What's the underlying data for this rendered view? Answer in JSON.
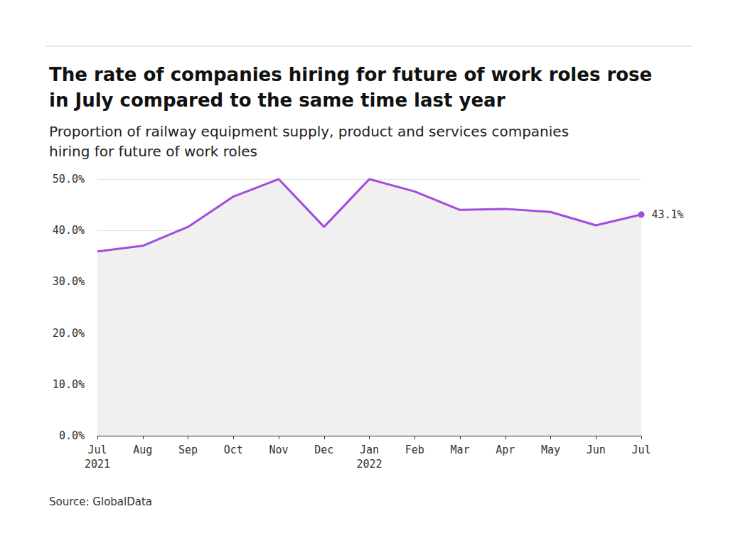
{
  "chart_data": {
    "type": "line",
    "title": "The rate of companies hiring for future of work roles rose\nin July compared to the same time last year",
    "subtitle": "Proportion of railway equipment supply, product and services companies\nhiring for future of work roles",
    "source": "Source: GlobalData",
    "categories": [
      "Jul\n2021",
      "Aug",
      "Sep",
      "Oct",
      "Nov",
      "Dec",
      "Jan\n2022",
      "Feb",
      "Mar",
      "Apr",
      "May",
      "Jun",
      "Jul"
    ],
    "values": [
      35.9,
      37.0,
      40.7,
      46.6,
      50.0,
      40.7,
      50.0,
      47.6,
      44.0,
      44.2,
      43.6,
      41.0,
      43.1
    ],
    "value_labels": [
      null,
      null,
      null,
      null,
      null,
      null,
      null,
      null,
      null,
      null,
      null,
      null,
      "43.1%"
    ],
    "color": "#a04ddf",
    "ylim": [
      0,
      50
    ],
    "yticks": [
      {
        "value": 0,
        "label": "0.0%"
      },
      {
        "value": 10,
        "label": "10.0%"
      },
      {
        "value": 20,
        "label": "20.0%"
      },
      {
        "value": 30,
        "label": "30.0%"
      },
      {
        "value": 40,
        "label": "40.0%"
      },
      {
        "value": 50,
        "label": "50.0%"
      }
    ],
    "grid": true
  }
}
